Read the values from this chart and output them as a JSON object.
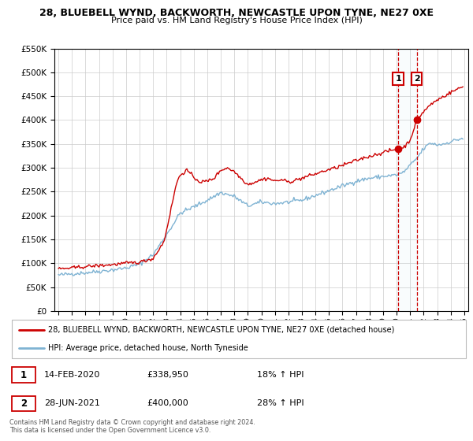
{
  "title": "28, BLUEBELL WYND, BACKWORTH, NEWCASTLE UPON TYNE, NE27 0XE",
  "subtitle": "Price paid vs. HM Land Registry's House Price Index (HPI)",
  "legend_line1": "28, BLUEBELL WYND, BACKWORTH, NEWCASTLE UPON TYNE, NE27 0XE (detached house)",
  "legend_line2": "HPI: Average price, detached house, North Tyneside",
  "point1_label": "14-FEB-2020",
  "point1_price": "£338,950",
  "point1_hpi": "18% ↑ HPI",
  "point2_label": "28-JUN-2021",
  "point2_price": "£400,000",
  "point2_hpi": "28% ↑ HPI",
  "point1_t": 2020.12,
  "point1_value": 338950,
  "point2_t": 2021.49,
  "point2_value": 400000,
  "footer1": "Contains HM Land Registry data © Crown copyright and database right 2024.",
  "footer2": "This data is licensed under the Open Government Licence v3.0.",
  "red_color": "#cc0000",
  "blue_color": "#7fb3d3",
  "grid_color": "#cccccc",
  "ylim_min": 0,
  "ylim_max": 550000,
  "xlim_min": 1994.7,
  "xlim_max": 2025.3
}
